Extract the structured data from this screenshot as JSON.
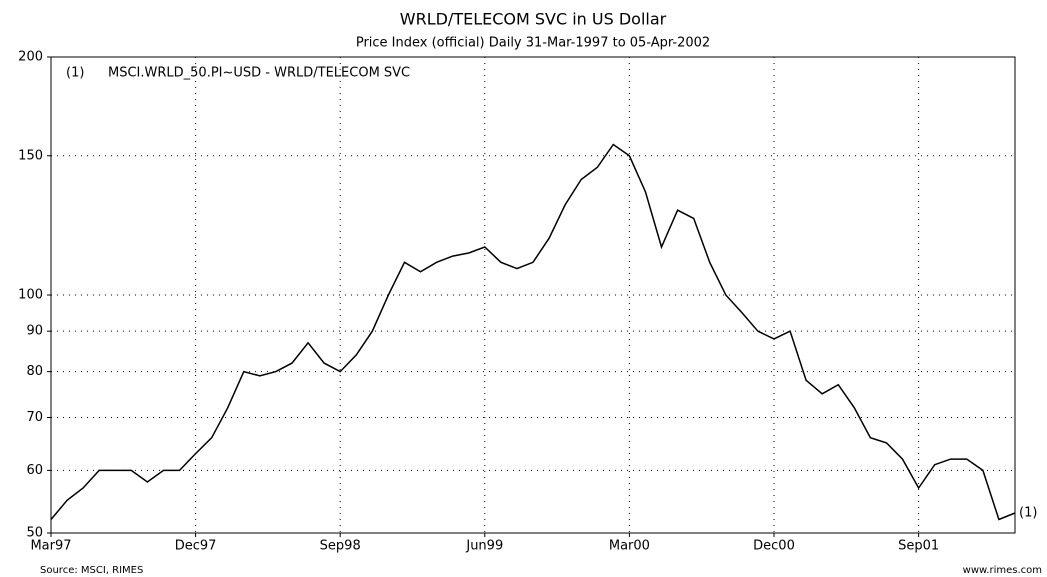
{
  "chart_data": {
    "type": "line",
    "title": "WRLD/TELECOM SVC in US Dollar",
    "subtitle": "Price Index (official) Daily 31-Mar-1997 to 05-Apr-2002",
    "source": "Source: MSCI, RIMES",
    "credit": "www.rimes.com",
    "x": [
      "1997-03",
      "1997-04",
      "1997-05",
      "1997-06",
      "1997-07",
      "1997-08",
      "1997-09",
      "1997-10",
      "1997-11",
      "1997-12",
      "1998-01",
      "1998-02",
      "1998-03",
      "1998-04",
      "1998-05",
      "1998-06",
      "1998-07",
      "1998-08",
      "1998-09",
      "1998-10",
      "1998-11",
      "1998-12",
      "1999-01",
      "1999-02",
      "1999-03",
      "1999-04",
      "1999-05",
      "1999-06",
      "1999-07",
      "1999-08",
      "1999-09",
      "1999-10",
      "1999-11",
      "1999-12",
      "2000-01",
      "2000-02",
      "2000-03",
      "2000-04",
      "2000-05",
      "2000-06",
      "2000-07",
      "2000-08",
      "2000-09",
      "2000-10",
      "2000-11",
      "2000-12",
      "2001-01",
      "2001-02",
      "2001-03",
      "2001-04",
      "2001-05",
      "2001-06",
      "2001-07",
      "2001-08",
      "2001-09",
      "2001-10",
      "2001-11",
      "2001-12",
      "2002-01",
      "2002-02",
      "2002-03"
    ],
    "series": [
      {
        "label": "(1)",
        "name": "MSCI.WRLD_50.PI~USD - WRLD/TELECOM SVC",
        "color": "#000000",
        "values": [
          52,
          55,
          57,
          60,
          60,
          60,
          58,
          60,
          60,
          63,
          66,
          72,
          80,
          79,
          80,
          82,
          87,
          82,
          80,
          84,
          90,
          100,
          110,
          107,
          110,
          112,
          113,
          115,
          110,
          108,
          110,
          118,
          130,
          140,
          145,
          155,
          150,
          135,
          115,
          128,
          125,
          110,
          100,
          95,
          90,
          88,
          90,
          78,
          75,
          77,
          72,
          66,
          65,
          62,
          57,
          61,
          62,
          62,
          60,
          52,
          53
        ]
      }
    ],
    "xlim": [
      "1997-03",
      "2002-03"
    ],
    "xticks": [
      {
        "value": "1997-03",
        "label": "Mar97"
      },
      {
        "value": "1997-12",
        "label": "Dec97"
      },
      {
        "value": "1998-09",
        "label": "Sep98"
      },
      {
        "value": "1999-06",
        "label": "Jun99"
      },
      {
        "value": "2000-03",
        "label": "Mar00"
      },
      {
        "value": "2000-12",
        "label": "Dec00"
      },
      {
        "value": "2001-09",
        "label": "Sep01"
      }
    ],
    "ylim": [
      50,
      200
    ],
    "yticks": [
      50,
      60,
      70,
      80,
      90,
      100,
      150,
      200
    ],
    "log_y": true,
    "grid": true
  }
}
